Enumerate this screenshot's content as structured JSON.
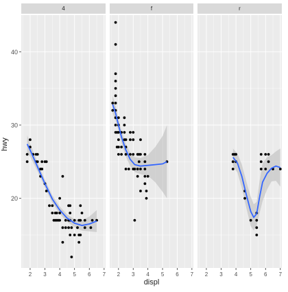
{
  "chart_data": {
    "type": "scatter",
    "xlabel": "displ",
    "ylabel": "hwy",
    "xlim": [
      1.4,
      7.1
    ],
    "ylim": [
      10.5,
      45
    ],
    "x_ticks": [
      2,
      3,
      4,
      5,
      6,
      7
    ],
    "y_ticks": [
      20,
      30,
      40
    ],
    "grid": true,
    "smooth_line_color": "#3366FF",
    "ribbon_color": "#BEBEBE",
    "panel_bg": "#EBEBEB",
    "strip_bg": "#D9D9D9",
    "point_color": "#000000",
    "facets": [
      {
        "label": "4",
        "points": [
          [
            1.8,
            26
          ],
          [
            1.8,
            25
          ],
          [
            2.0,
            28
          ],
          [
            2.0,
            27
          ],
          [
            2.2,
            26
          ],
          [
            2.4,
            26
          ],
          [
            2.4,
            25
          ],
          [
            2.5,
            26
          ],
          [
            2.5,
            25
          ],
          [
            2.7,
            24
          ],
          [
            2.7,
            23
          ],
          [
            2.8,
            25
          ],
          [
            2.8,
            24
          ],
          [
            3.0,
            25
          ],
          [
            3.0,
            22
          ],
          [
            3.1,
            25
          ],
          [
            3.1,
            21
          ],
          [
            3.3,
            19
          ],
          [
            3.5,
            18
          ],
          [
            3.5,
            19
          ],
          [
            3.6,
            17
          ],
          [
            3.7,
            17
          ],
          [
            3.7,
            18
          ],
          [
            3.8,
            17
          ],
          [
            3.9,
            17
          ],
          [
            4.0,
            20
          ],
          [
            4.0,
            17
          ],
          [
            4.0,
            18
          ],
          [
            4.2,
            23
          ],
          [
            4.2,
            16
          ],
          [
            4.4,
            17
          ],
          [
            4.6,
            17
          ],
          [
            4.6,
            19
          ],
          [
            4.6,
            16
          ],
          [
            4.7,
            15
          ],
          [
            4.7,
            17
          ],
          [
            4.7,
            19
          ],
          [
            4.7,
            18
          ],
          [
            4.8,
            12
          ],
          [
            4.8,
            16
          ],
          [
            5.0,
            17
          ],
          [
            5.0,
            15
          ],
          [
            5.2,
            16
          ],
          [
            5.3,
            17
          ],
          [
            5.3,
            15
          ],
          [
            5.4,
            15
          ],
          [
            5.4,
            17
          ],
          [
            5.4,
            19
          ],
          [
            5.5,
            18
          ],
          [
            5.7,
            17
          ],
          [
            5.7,
            16
          ],
          [
            6.1,
            16
          ],
          [
            6.2,
            17
          ],
          [
            6.5,
            17
          ],
          [
            4.2,
            14
          ],
          [
            5.3,
            14
          ],
          [
            3.8,
            18
          ],
          [
            4.4,
            16
          ]
        ],
        "smooth": [
          [
            1.8,
            27.4
          ],
          [
            2.0,
            26.6
          ],
          [
            2.5,
            24.3
          ],
          [
            3.0,
            22.0
          ],
          [
            3.5,
            19.9
          ],
          [
            4.0,
            18.4
          ],
          [
            4.5,
            17.3
          ],
          [
            5.0,
            16.6
          ],
          [
            5.5,
            16.3
          ],
          [
            6.0,
            16.5
          ],
          [
            6.5,
            16.9
          ]
        ],
        "ribbon_half_width": [
          1.2,
          0.9,
          0.6,
          0.55,
          0.5,
          0.5,
          0.5,
          0.55,
          0.7,
          1.0,
          1.5
        ]
      },
      {
        "label": "f",
        "points": [
          [
            1.6,
            33
          ],
          [
            1.6,
            32
          ],
          [
            1.8,
            44
          ],
          [
            1.8,
            41
          ],
          [
            1.8,
            37
          ],
          [
            1.8,
            36
          ],
          [
            1.8,
            35
          ],
          [
            1.8,
            34
          ],
          [
            1.8,
            33
          ],
          [
            1.8,
            32
          ],
          [
            1.8,
            31
          ],
          [
            1.8,
            30
          ],
          [
            1.8,
            29
          ],
          [
            1.9,
            29
          ],
          [
            1.9,
            27
          ],
          [
            2.0,
            31
          ],
          [
            2.0,
            30
          ],
          [
            2.0,
            29
          ],
          [
            2.0,
            28
          ],
          [
            2.0,
            27
          ],
          [
            2.0,
            26
          ],
          [
            2.2,
            29
          ],
          [
            2.2,
            27
          ],
          [
            2.2,
            26
          ],
          [
            2.4,
            31
          ],
          [
            2.4,
            30
          ],
          [
            2.4,
            29
          ],
          [
            2.4,
            28
          ],
          [
            2.5,
            28
          ],
          [
            2.5,
            27
          ],
          [
            2.5,
            26
          ],
          [
            2.5,
            24
          ],
          [
            2.7,
            24
          ],
          [
            2.8,
            29
          ],
          [
            2.8,
            28
          ],
          [
            2.8,
            26
          ],
          [
            3.0,
            29
          ],
          [
            3.0,
            28
          ],
          [
            3.0,
            26
          ],
          [
            3.0,
            24
          ],
          [
            3.1,
            17
          ],
          [
            3.1,
            24
          ],
          [
            3.3,
            26
          ],
          [
            3.3,
            24
          ],
          [
            3.3,
            23
          ],
          [
            3.4,
            26
          ],
          [
            3.4,
            25
          ],
          [
            3.5,
            28
          ],
          [
            3.5,
            26
          ],
          [
            3.5,
            24
          ],
          [
            3.5,
            21
          ],
          [
            3.8,
            26
          ],
          [
            3.8,
            25
          ],
          [
            3.8,
            24
          ],
          [
            3.8,
            23
          ],
          [
            3.8,
            22
          ],
          [
            3.9,
            20
          ],
          [
            3.9,
            21
          ],
          [
            4.0,
            23
          ],
          [
            5.3,
            25
          ]
        ],
        "smooth": [
          [
            1.6,
            32.8
          ],
          [
            1.8,
            31.6
          ],
          [
            2.0,
            30.0
          ],
          [
            2.2,
            28.4
          ],
          [
            2.5,
            26.6
          ],
          [
            2.8,
            25.3
          ],
          [
            3.1,
            24.6
          ],
          [
            3.5,
            24.4
          ],
          [
            4.0,
            24.5
          ],
          [
            4.5,
            24.6
          ],
          [
            5.0,
            24.7
          ],
          [
            5.3,
            25.0
          ]
        ],
        "ribbon_half_width": [
          1.2,
          1.0,
          0.8,
          0.8,
          0.9,
          0.9,
          1.0,
          1.1,
          1.4,
          2.4,
          3.8,
          5.0
        ]
      },
      {
        "label": "r",
        "points": [
          [
            3.8,
            26
          ],
          [
            3.8,
            25
          ],
          [
            3.8,
            24
          ],
          [
            3.9,
            26
          ],
          [
            4.0,
            26
          ],
          [
            4.0,
            25
          ],
          [
            4.6,
            21
          ],
          [
            4.6,
            20
          ],
          [
            5.0,
            17
          ],
          [
            5.4,
            18
          ],
          [
            5.4,
            17
          ],
          [
            5.4,
            15
          ],
          [
            5.4,
            16
          ],
          [
            5.7,
            24
          ],
          [
            5.7,
            25
          ],
          [
            5.7,
            26
          ],
          [
            6.0,
            26
          ],
          [
            6.0,
            24
          ],
          [
            6.2,
            25
          ],
          [
            6.2,
            26
          ],
          [
            6.5,
            24
          ],
          [
            7.0,
            24
          ]
        ],
        "smooth": [
          [
            3.8,
            25.6
          ],
          [
            4.1,
            24.8
          ],
          [
            4.4,
            23.0
          ],
          [
            4.7,
            20.5
          ],
          [
            5.0,
            18.2
          ],
          [
            5.2,
            17.4
          ],
          [
            5.4,
            17.9
          ],
          [
            5.6,
            20.2
          ],
          [
            5.8,
            22.2
          ],
          [
            6.1,
            23.4
          ],
          [
            6.4,
            24.1
          ],
          [
            6.7,
            24.4
          ],
          [
            7.0,
            24.2
          ]
        ],
        "ribbon_half_width": [
          1.2,
          1.3,
          1.6,
          1.8,
          2.0,
          1.8,
          1.6,
          2.2,
          2.6,
          2.2,
          1.8,
          2.0,
          2.6
        ]
      }
    ]
  }
}
